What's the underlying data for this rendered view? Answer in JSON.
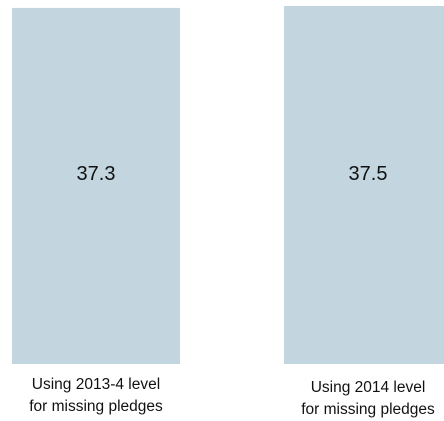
{
  "chart_data": {
    "type": "bar",
    "categories": [
      [
        "Using 2013-4 level",
        "for missing pledges"
      ],
      [
        "Using 2014 level",
        "for missing pledges"
      ]
    ],
    "values": [
      37.3,
      37.5
    ],
    "value_labels": [
      "37.3",
      "37.5"
    ],
    "bar_color": "#c3d6e0",
    "title": "",
    "xlabel": "",
    "ylabel": "",
    "ylim": [
      0,
      37.5
    ],
    "grid": false,
    "legend": "none"
  }
}
